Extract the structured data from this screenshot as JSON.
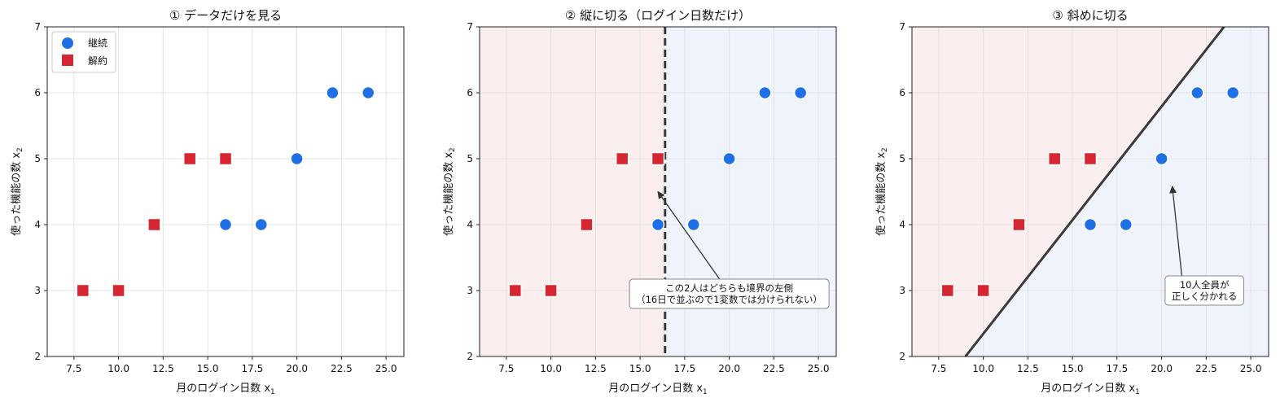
{
  "colors": {
    "continue": "#1f6fe5",
    "churn": "#d62631",
    "region_churn": "#fbeeee",
    "region_continue": "#eef3fc",
    "boundary": "#3a3a3a",
    "grid": "#e3e3e3"
  },
  "chart_data": [
    {
      "type": "scatter",
      "title": "① データだけを見る",
      "xlabel": "月のログイン日数 x",
      "xlabel_sub": "1",
      "ylabel": "使った機能の数 x",
      "ylabel_sub": "2",
      "xlim": [
        6,
        26
      ],
      "ylim": [
        2,
        7
      ],
      "xticks": [
        "7.5",
        "10.0",
        "12.5",
        "15.0",
        "17.5",
        "20.0",
        "22.5",
        "25.0"
      ],
      "yticks": [
        "2",
        "3",
        "4",
        "5",
        "6",
        "7"
      ],
      "grid": true,
      "legend": {
        "placement": "top-left",
        "entries": [
          "継続",
          "解約"
        ]
      },
      "series": [
        {
          "name": "継続",
          "marker": "circle",
          "x": [
            16,
            18,
            20,
            22,
            24
          ],
          "y": [
            4,
            4,
            5,
            6,
            6
          ]
        },
        {
          "name": "解約",
          "marker": "square",
          "x": [
            8,
            10,
            12,
            14,
            16
          ],
          "y": [
            3,
            3,
            4,
            5,
            5
          ]
        }
      ]
    },
    {
      "type": "scatter",
      "title": "② 縦に切る（ログイン日数だけ）",
      "xlabel": "月のログイン日数 x",
      "xlabel_sub": "1",
      "ylabel": "使った機能の数 x",
      "ylabel_sub": "2",
      "xlim": [
        6,
        26
      ],
      "ylim": [
        2,
        7
      ],
      "xticks": [
        "7.5",
        "10.0",
        "12.5",
        "15.0",
        "17.5",
        "20.0",
        "22.5",
        "25.0"
      ],
      "yticks": [
        "2",
        "3",
        "4",
        "5",
        "6",
        "7"
      ],
      "grid": true,
      "boundary": {
        "kind": "vertical",
        "x": 16.4,
        "style": "dashed"
      },
      "series": [
        {
          "name": "継続",
          "marker": "circle",
          "x": [
            16,
            18,
            20,
            22,
            24
          ],
          "y": [
            4,
            4,
            5,
            6,
            6
          ]
        },
        {
          "name": "解約",
          "marker": "square",
          "x": [
            8,
            10,
            12,
            14,
            16
          ],
          "y": [
            3,
            3,
            4,
            5,
            5
          ]
        }
      ],
      "annotation": {
        "lines": [
          "この2人はどちらも境界の左側",
          "（16日で並ぶので1変数では分けられない）"
        ],
        "text_x": 20.0,
        "text_y": 2.95,
        "arrow_from": [
          19.7,
          3.08
        ],
        "arrow_to": [
          16.0,
          4.5
        ]
      }
    },
    {
      "type": "scatter",
      "title": "③ 斜めに切る",
      "xlabel": "月のログイン日数 x",
      "xlabel_sub": "1",
      "ylabel": "使った機能の数 x",
      "ylabel_sub": "2",
      "xlim": [
        6,
        26
      ],
      "ylim": [
        2,
        7
      ],
      "xticks": [
        "7.5",
        "10.0",
        "12.5",
        "15.0",
        "17.5",
        "20.0",
        "22.5",
        "25.0"
      ],
      "yticks": [
        "2",
        "3",
        "4",
        "5",
        "6",
        "7"
      ],
      "grid": true,
      "boundary": {
        "kind": "line",
        "from": [
          9.0,
          2.0
        ],
        "to": [
          23.5,
          7.0
        ],
        "style": "solid"
      },
      "series": [
        {
          "name": "継続",
          "marker": "circle",
          "x": [
            16,
            18,
            20,
            22,
            24
          ],
          "y": [
            4,
            4,
            5,
            6,
            6
          ]
        },
        {
          "name": "解約",
          "marker": "square",
          "x": [
            8,
            10,
            12,
            14,
            16
          ],
          "y": [
            3,
            3,
            4,
            5,
            5
          ]
        }
      ],
      "annotation": {
        "lines": [
          "10人全員が",
          "正しく分かれる"
        ],
        "text_x": 22.4,
        "text_y": 3.0,
        "arrow_from": [
          21.2,
          3.05
        ],
        "arrow_to": [
          20.6,
          4.58
        ]
      }
    }
  ]
}
